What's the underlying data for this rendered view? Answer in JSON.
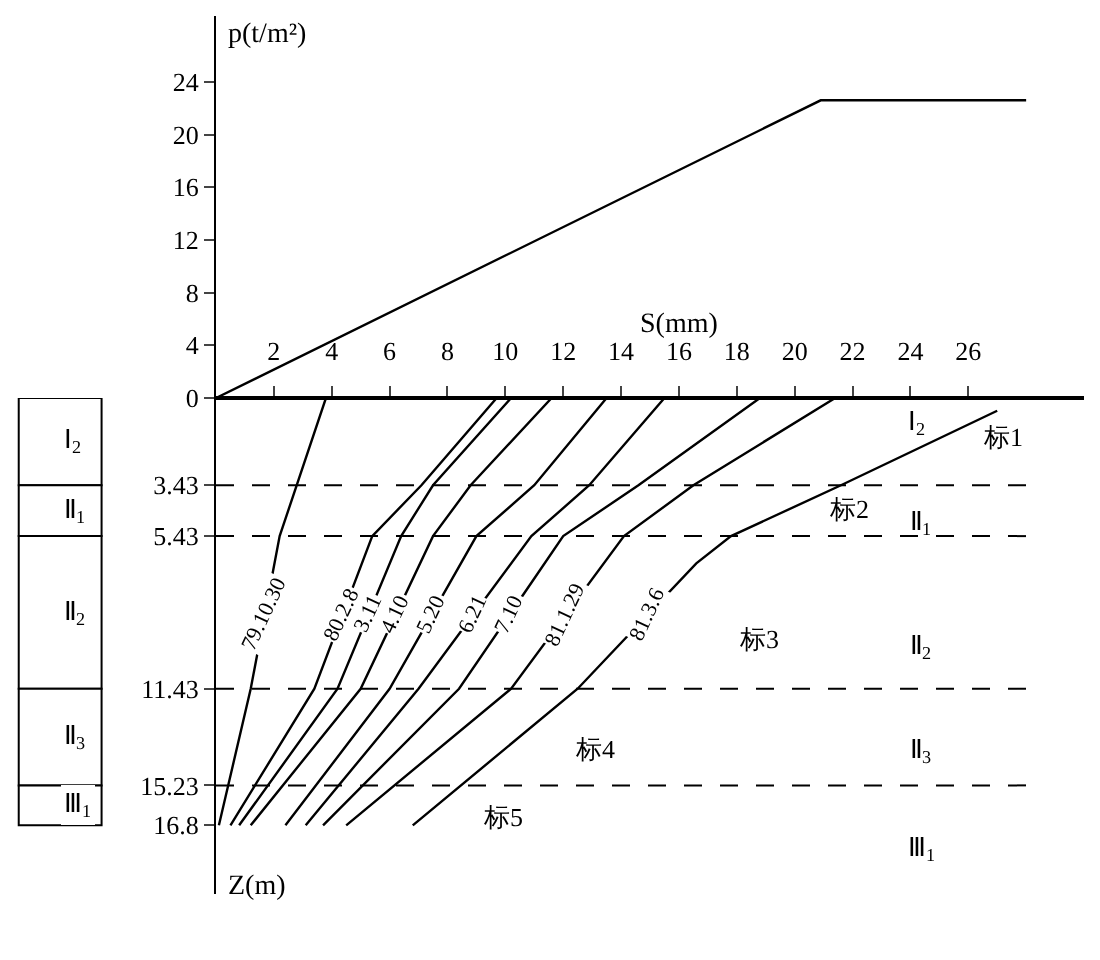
{
  "chart_data": [
    {
      "type": "line",
      "ylabel": "p(t/m²)",
      "xlim": [
        0,
        30
      ],
      "ylim": [
        0,
        29
      ],
      "yticks": [
        0,
        4,
        8,
        12,
        16,
        20,
        24
      ],
      "tick_labels": "y",
      "grid": false,
      "legend": false,
      "marker": "none",
      "line_style": "solid",
      "series": [
        {
          "color": "#000000",
          "x": [
            0,
            20.9,
            28.0
          ],
          "values": [
            0,
            22.6,
            22.6
          ]
        }
      ]
    },
    {
      "type": "line",
      "orientation": "horizontal",
      "xlabel": "S(mm)",
      "ylabel": "Z(m)",
      "xlim": [
        0,
        30
      ],
      "xticks": [
        2,
        4,
        6,
        8,
        10,
        12,
        14,
        16,
        18,
        20,
        22,
        24,
        26
      ],
      "ylim": [
        19.5,
        0
      ],
      "yticks": [
        3.43,
        5.43,
        11.43,
        15.23,
        16.8
      ],
      "grid": false,
      "legend": false,
      "marker": "none",
      "line_style": "solid",
      "series": [
        {
          "name": "79.10.30",
          "color": "#000000",
          "x": [
            0,
            5.43,
            11.43,
            16.8
          ],
          "values": [
            3.8,
            2.2,
            1.2,
            0.1
          ]
        },
        {
          "name": "80.2.8",
          "color": "#000000",
          "x": [
            0,
            3.43,
            5.43,
            11.43,
            16.8
          ],
          "values": [
            9.7,
            7.1,
            5.4,
            3.4,
            0.5
          ]
        },
        {
          "name": "3.11",
          "color": "#000000",
          "x": [
            0,
            3.43,
            5.43,
            11.43,
            16.8
          ],
          "values": [
            10.2,
            7.5,
            6.4,
            4.2,
            0.8
          ]
        },
        {
          "name": "4.10",
          "color": "#000000",
          "x": [
            0,
            3.43,
            5.43,
            11.43,
            16.8
          ],
          "values": [
            11.6,
            8.8,
            7.5,
            5.0,
            1.2
          ]
        },
        {
          "name": "5.20",
          "color": "#000000",
          "x": [
            0,
            3.43,
            5.43,
            11.43,
            16.8
          ],
          "values": [
            13.5,
            11.0,
            9.0,
            6.0,
            2.4
          ]
        },
        {
          "name": "6.21",
          "color": "#000000",
          "x": [
            0,
            3.43,
            5.43,
            11.43,
            16.8
          ],
          "values": [
            15.5,
            12.9,
            10.9,
            7.0,
            3.1
          ]
        },
        {
          "name": "7.10",
          "color": "#000000",
          "x": [
            0,
            3.43,
            5.43,
            11.43,
            16.8
          ],
          "values": [
            18.8,
            14.6,
            12.0,
            8.4,
            3.7
          ]
        },
        {
          "name": "81.1.29",
          "color": "#000000",
          "x": [
            0,
            3.43,
            5.43,
            11.43,
            16.8
          ],
          "values": [
            21.4,
            16.5,
            14.1,
            10.2,
            4.5
          ]
        },
        {
          "name": "81.3.6",
          "color": "#000000",
          "x": [
            0.5,
            3.43,
            5.43,
            6.5,
            11.43,
            16.8
          ],
          "values": [
            27.0,
            21.6,
            17.8,
            16.6,
            12.5,
            6.8
          ]
        }
      ],
      "ref_lines": [
        {
          "axis": "y",
          "value": 3.43,
          "line_style": "dashed",
          "color": "#000000"
        },
        {
          "axis": "y",
          "value": 5.43,
          "line_style": "dashed",
          "color": "#000000"
        },
        {
          "axis": "y",
          "value": 11.43,
          "line_style": "dashed",
          "color": "#000000"
        },
        {
          "axis": "y",
          "value": 15.23,
          "line_style": "dashed",
          "color": "#000000"
        }
      ],
      "annotations": [
        "标1",
        "标2",
        "标3",
        "标4",
        "标5",
        "Ⅰ$_{2}$",
        "Ⅱ$_{1}$",
        "Ⅱ$_{2}$",
        "Ⅱ$_{3}$",
        "Ⅲ$_{1}$"
      ]
    },
    {
      "type": "other",
      "categories": [
        "Ⅰ$_{2}$",
        "Ⅱ$_{1}$",
        "Ⅱ$_{2}$",
        "Ⅱ$_{3}$",
        "Ⅲ$_{1}$"
      ]
    }
  ]
}
